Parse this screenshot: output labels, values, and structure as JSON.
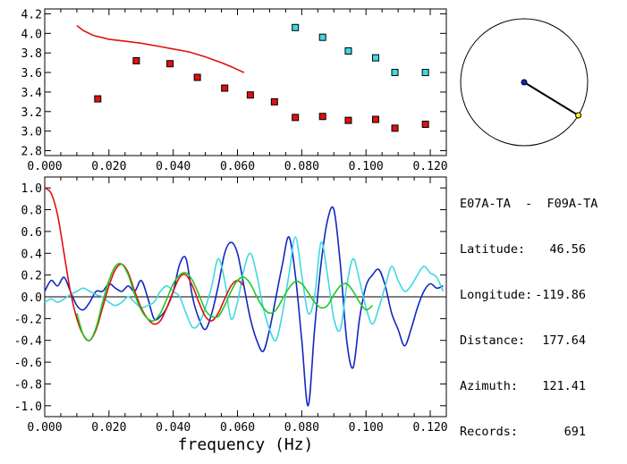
{
  "chart_data": [
    {
      "type": "scatter",
      "xlim": [
        0.0,
        0.125
      ],
      "ylim": [
        2.75,
        4.25
      ],
      "x_ticks": [
        "0.000",
        "0.020",
        "0.040",
        "0.060",
        "0.080",
        "0.100",
        "0.120"
      ],
      "y_ticks": [
        "2.8",
        "3.0",
        "3.2",
        "3.4",
        "3.6",
        "3.8",
        "4.0",
        "4.2"
      ],
      "series": [
        {
          "kind": "line",
          "color": "#e01010",
          "x": [
            0.01,
            0.012,
            0.015,
            0.02,
            0.025,
            0.03,
            0.035,
            0.04,
            0.045,
            0.05,
            0.055,
            0.058,
            0.06,
            0.062
          ],
          "y": [
            4.08,
            4.03,
            3.98,
            3.94,
            3.92,
            3.9,
            3.87,
            3.84,
            3.81,
            3.76,
            3.7,
            3.66,
            3.63,
            3.6
          ]
        },
        {
          "kind": "markers",
          "color": "#e01010",
          "x": [
            0.0165,
            0.0285,
            0.039,
            0.0475,
            0.056,
            0.064,
            0.0715,
            0.078,
            0.0865,
            0.0945,
            0.103,
            0.109,
            0.1185
          ],
          "y": [
            3.33,
            3.72,
            3.69,
            3.55,
            3.44,
            3.37,
            3.3,
            3.14,
            3.15,
            3.11,
            3.12,
            3.03,
            3.07
          ]
        },
        {
          "kind": "markers",
          "color": "#40d8e0",
          "x": [
            0.078,
            0.0865,
            0.0945,
            0.103,
            0.109,
            0.1185
          ],
          "y": [
            4.06,
            3.96,
            3.82,
            3.75,
            3.6,
            3.6
          ]
        }
      ]
    },
    {
      "type": "line",
      "xlim": [
        0.0,
        0.125
      ],
      "ylim": [
        -1.1,
        1.1
      ],
      "x_ticks": [
        "0.000",
        "0.020",
        "0.040",
        "0.060",
        "0.080",
        "0.100",
        "0.120"
      ],
      "y_ticks": [
        "1.0",
        "0.8",
        "0.6",
        "0.4",
        "0.2",
        "0.0",
        "-0.2",
        "-0.4",
        "-0.6",
        "-0.8",
        "-1.0"
      ],
      "xlabel": "frequency (Hz)",
      "series": [
        {
          "color": "#1028c0",
          "x": [
            0.0,
            0.002,
            0.004,
            0.006,
            0.008,
            0.01,
            0.012,
            0.014,
            0.016,
            0.018,
            0.02,
            0.022,
            0.024,
            0.026,
            0.028,
            0.03,
            0.032,
            0.034,
            0.036,
            0.038,
            0.04,
            0.042,
            0.044,
            0.046,
            0.048,
            0.05,
            0.052,
            0.054,
            0.056,
            0.058,
            0.06,
            0.062,
            0.064,
            0.066,
            0.068,
            0.07,
            0.072,
            0.074,
            0.076,
            0.078,
            0.08,
            0.082,
            0.084,
            0.086,
            0.088,
            0.09,
            0.092,
            0.094,
            0.096,
            0.098,
            0.1,
            0.102,
            0.104,
            0.106,
            0.108,
            0.11,
            0.112,
            0.114,
            0.116,
            0.118,
            0.12,
            0.122,
            0.124
          ],
          "y": [
            0.05,
            0.15,
            0.1,
            0.18,
            0.05,
            -0.08,
            -0.12,
            -0.05,
            0.05,
            0.05,
            0.12,
            0.08,
            0.05,
            0.1,
            0.05,
            0.15,
            0.0,
            -0.2,
            -0.18,
            -0.1,
            0.05,
            0.3,
            0.35,
            0.0,
            -0.2,
            -0.3,
            -0.15,
            0.1,
            0.4,
            0.5,
            0.4,
            0.1,
            -0.2,
            -0.4,
            -0.5,
            -0.3,
            0.0,
            0.3,
            0.55,
            0.2,
            -0.4,
            -1.0,
            -0.3,
            0.3,
            0.7,
            0.8,
            0.3,
            -0.4,
            -0.65,
            -0.2,
            0.1,
            0.2,
            0.25,
            0.1,
            -0.15,
            -0.3,
            -0.45,
            -0.3,
            -0.1,
            0.05,
            0.12,
            0.08,
            0.1
          ]
        },
        {
          "color": "#40d8e0",
          "x": [
            0.0,
            0.002,
            0.004,
            0.006,
            0.008,
            0.01,
            0.012,
            0.014,
            0.016,
            0.018,
            0.02,
            0.022,
            0.024,
            0.026,
            0.028,
            0.03,
            0.032,
            0.034,
            0.036,
            0.038,
            0.04,
            0.042,
            0.044,
            0.046,
            0.048,
            0.05,
            0.052,
            0.054,
            0.056,
            0.058,
            0.06,
            0.062,
            0.064,
            0.066,
            0.068,
            0.07,
            0.072,
            0.074,
            0.076,
            0.078,
            0.08,
            0.082,
            0.084,
            0.086,
            0.088,
            0.09,
            0.092,
            0.094,
            0.096,
            0.098,
            0.1,
            0.102,
            0.104,
            0.106,
            0.108,
            0.11,
            0.112,
            0.114,
            0.116,
            0.118,
            0.12,
            0.122,
            0.124
          ],
          "y": [
            -0.05,
            -0.02,
            -0.05,
            -0.02,
            0.02,
            0.05,
            0.08,
            0.05,
            0.02,
            0.0,
            -0.05,
            -0.08,
            -0.05,
            0.0,
            -0.05,
            -0.1,
            -0.08,
            -0.05,
            0.05,
            0.1,
            0.05,
            0.0,
            -0.15,
            -0.28,
            -0.25,
            -0.1,
            0.1,
            0.35,
            0.15,
            -0.2,
            -0.05,
            0.25,
            0.4,
            0.2,
            -0.1,
            -0.3,
            -0.4,
            -0.15,
            0.2,
            0.55,
            0.2,
            -0.15,
            0.0,
            0.5,
            0.2,
            -0.2,
            -0.3,
            0.1,
            0.35,
            0.15,
            -0.1,
            -0.25,
            -0.1,
            0.1,
            0.28,
            0.15,
            0.05,
            0.1,
            0.2,
            0.28,
            0.22,
            0.18,
            0.05
          ]
        },
        {
          "color": "#e01010",
          "x": [
            0.0,
            0.002,
            0.004,
            0.006,
            0.008,
            0.01,
            0.012,
            0.014,
            0.016,
            0.018,
            0.02,
            0.022,
            0.024,
            0.026,
            0.028,
            0.03,
            0.032,
            0.034,
            0.036,
            0.038,
            0.04,
            0.042,
            0.044,
            0.046,
            0.048,
            0.05,
            0.052,
            0.054,
            0.056,
            0.058,
            0.06,
            0.062
          ],
          "y": [
            1.0,
            0.95,
            0.75,
            0.4,
            0.05,
            -0.2,
            -0.35,
            -0.4,
            -0.3,
            -0.1,
            0.1,
            0.25,
            0.3,
            0.22,
            0.05,
            -0.1,
            -0.2,
            -0.25,
            -0.22,
            -0.1,
            0.05,
            0.18,
            0.2,
            0.1,
            -0.05,
            -0.18,
            -0.22,
            -0.15,
            -0.02,
            0.1,
            0.15,
            0.1
          ]
        },
        {
          "color": "#20c820",
          "x": [
            0.01,
            0.012,
            0.014,
            0.016,
            0.018,
            0.02,
            0.022,
            0.024,
            0.026,
            0.028,
            0.03,
            0.032,
            0.034,
            0.036,
            0.038,
            0.04,
            0.042,
            0.044,
            0.046,
            0.048,
            0.05,
            0.052,
            0.054,
            0.056,
            0.058,
            0.06,
            0.062,
            0.064,
            0.066,
            0.068,
            0.07,
            0.072,
            0.074,
            0.076,
            0.078,
            0.08,
            0.082,
            0.084,
            0.086,
            0.088,
            0.09,
            0.092,
            0.094,
            0.096,
            0.098,
            0.1,
            0.102
          ],
          "y": [
            -0.15,
            -0.35,
            -0.4,
            -0.28,
            -0.05,
            0.15,
            0.28,
            0.3,
            0.2,
            0.02,
            -0.12,
            -0.2,
            -0.22,
            -0.15,
            -0.02,
            0.12,
            0.2,
            0.22,
            0.15,
            0.02,
            -0.12,
            -0.18,
            -0.18,
            -0.08,
            0.05,
            0.15,
            0.18,
            0.12,
            0.0,
            -0.1,
            -0.15,
            -0.12,
            -0.02,
            0.08,
            0.14,
            0.12,
            0.04,
            -0.05,
            -0.1,
            -0.08,
            0.02,
            0.1,
            0.12,
            0.05,
            -0.05,
            -0.12,
            -0.08
          ]
        }
      ]
    }
  ],
  "map": {
    "marker_azimuth_deg": 121.41,
    "marker_color": "#ffff00",
    "center_color": "#1028c0"
  },
  "info": {
    "title": "E07A-TA  -  F09A-TA",
    "rows": [
      {
        "key": "Latitude:",
        "value": "46.56"
      },
      {
        "key": "Longitude:",
        "value": "-119.86"
      },
      {
        "key": "Distance:",
        "value": "177.64"
      },
      {
        "key": "Azimuth:",
        "value": "121.41"
      },
      {
        "key": "Records:",
        "value": "691"
      }
    ]
  }
}
